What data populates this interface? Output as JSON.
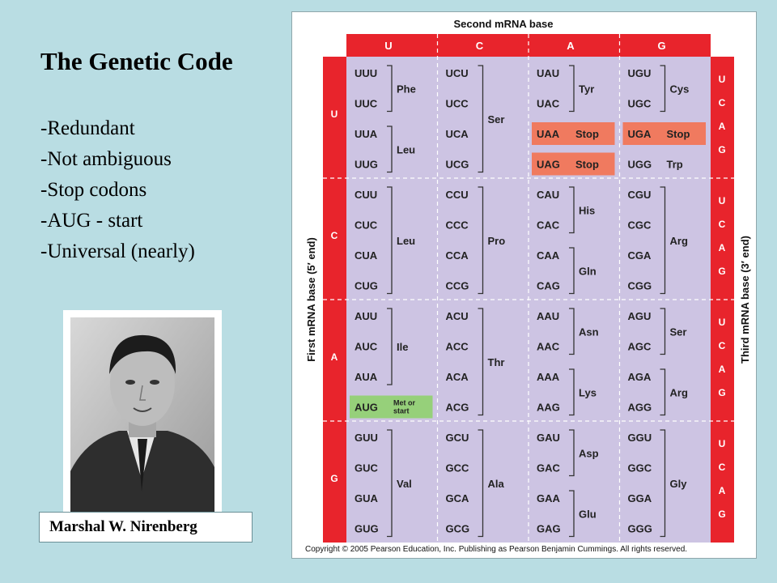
{
  "title": "The Genetic Code",
  "bullets": [
    "-Redundant",
    "-Not ambiguous",
    "-Stop codons",
    "-AUG - start",
    "-Universal  (nearly)"
  ],
  "caption": "Marshal W. Nirenberg",
  "table": {
    "header": "Second mRNA base",
    "bases": [
      "U",
      "C",
      "A",
      "G"
    ],
    "first_axis": "First mRNA base  (5′ end)",
    "third_axis": "Third mRNA base  (3′ end)",
    "copyright": "Copyright ©  2005 Pearson Education, Inc. Publishing as Pearson Benjamin Cummings. All rights reserved.",
    "colors": {
      "red": "#e8242c",
      "lilac": "#cdc4e3",
      "stop": "#f07a5f",
      "start": "#96d07a",
      "panel": "#ffffff"
    },
    "codons": [
      [
        "UUU",
        "UUC",
        "UUA",
        "UUG",
        "UCU",
        "UCC",
        "UCA",
        "UCG",
        "UAU",
        "UAC",
        "UAA",
        "UAG",
        "UGU",
        "UGC",
        "UGA",
        "UGG"
      ],
      [
        "CUU",
        "CUC",
        "CUA",
        "CUG",
        "CCU",
        "CCC",
        "CCA",
        "CCG",
        "CAU",
        "CAC",
        "CAA",
        "CAG",
        "CGU",
        "CGC",
        "CGA",
        "CGG"
      ],
      [
        "AUU",
        "AUC",
        "AUA",
        "AUG",
        "ACU",
        "ACC",
        "ACA",
        "ACG",
        "AAU",
        "AAC",
        "AAA",
        "AAG",
        "AGU",
        "AGC",
        "AGA",
        "AGG"
      ],
      [
        "GUU",
        "GUC",
        "GUA",
        "GUG",
        "GCU",
        "GCC",
        "GCA",
        "GCG",
        "GAU",
        "GAC",
        "GAA",
        "GAG",
        "GGU",
        "GGC",
        "GGA",
        "GGG"
      ]
    ],
    "amino_groups": [
      {
        "row": 0,
        "col": 0,
        "from": 0,
        "to": 1,
        "label": "Phe"
      },
      {
        "row": 0,
        "col": 0,
        "from": 2,
        "to": 3,
        "label": "Leu"
      },
      {
        "row": 0,
        "col": 1,
        "from": 0,
        "to": 3,
        "label": "Ser"
      },
      {
        "row": 0,
        "col": 2,
        "from": 0,
        "to": 1,
        "label": "Tyr"
      },
      {
        "row": 0,
        "col": 3,
        "from": 0,
        "to": 1,
        "label": "Cys"
      },
      {
        "row": 1,
        "col": 0,
        "from": 0,
        "to": 3,
        "label": "Leu"
      },
      {
        "row": 1,
        "col": 1,
        "from": 0,
        "to": 3,
        "label": "Pro"
      },
      {
        "row": 1,
        "col": 2,
        "from": 0,
        "to": 1,
        "label": "His"
      },
      {
        "row": 1,
        "col": 2,
        "from": 2,
        "to": 3,
        "label": "Gln"
      },
      {
        "row": 1,
        "col": 3,
        "from": 0,
        "to": 3,
        "label": "Arg"
      },
      {
        "row": 2,
        "col": 0,
        "from": 0,
        "to": 2,
        "label": "Ile"
      },
      {
        "row": 2,
        "col": 1,
        "from": 0,
        "to": 3,
        "label": "Thr"
      },
      {
        "row": 2,
        "col": 2,
        "from": 0,
        "to": 1,
        "label": "Asn"
      },
      {
        "row": 2,
        "col": 2,
        "from": 2,
        "to": 3,
        "label": "Lys"
      },
      {
        "row": 2,
        "col": 3,
        "from": 0,
        "to": 1,
        "label": "Ser"
      },
      {
        "row": 2,
        "col": 3,
        "from": 2,
        "to": 3,
        "label": "Arg"
      },
      {
        "row": 3,
        "col": 0,
        "from": 0,
        "to": 3,
        "label": "Val"
      },
      {
        "row": 3,
        "col": 1,
        "from": 0,
        "to": 3,
        "label": "Ala"
      },
      {
        "row": 3,
        "col": 2,
        "from": 0,
        "to": 1,
        "label": "Asp"
      },
      {
        "row": 3,
        "col": 2,
        "from": 2,
        "to": 3,
        "label": "Glu"
      },
      {
        "row": 3,
        "col": 3,
        "from": 0,
        "to": 3,
        "label": "Gly"
      }
    ],
    "inline_labels": [
      {
        "row": 0,
        "col": 2,
        "idx": 2,
        "label": "Stop",
        "kind": "stop"
      },
      {
        "row": 0,
        "col": 2,
        "idx": 3,
        "label": "Stop",
        "kind": "stop"
      },
      {
        "row": 0,
        "col": 3,
        "idx": 2,
        "label": "Stop",
        "kind": "stop"
      },
      {
        "row": 0,
        "col": 3,
        "idx": 3,
        "label": "Trp",
        "kind": "plain"
      },
      {
        "row": 2,
        "col": 0,
        "idx": 3,
        "label": "Met or start",
        "kind": "start"
      }
    ]
  }
}
